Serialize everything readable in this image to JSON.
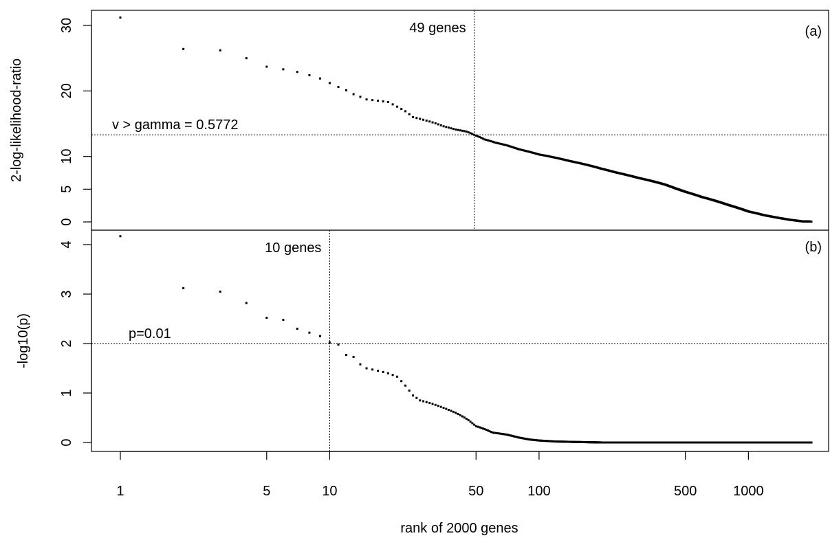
{
  "chart_data": [
    {
      "panel_label": "(a)",
      "type": "scatter",
      "ylabel": "2-log-likelihood-ratio",
      "x_scale": "log",
      "xlim": [
        1,
        2000
      ],
      "ylim": [
        0,
        31
      ],
      "y_ticks": [
        0,
        5,
        10,
        20,
        30
      ],
      "threshold_y": 13.3,
      "threshold_label": "v > gamma = 0.5772",
      "cutoff_x": 49,
      "cutoff_label": "49 genes",
      "points": [
        [
          1,
          31.2
        ],
        [
          2,
          26.4
        ],
        [
          3,
          26.2
        ],
        [
          4,
          25.0
        ],
        [
          5,
          23.7
        ],
        [
          6,
          23.3
        ],
        [
          7,
          22.9
        ],
        [
          8,
          22.4
        ],
        [
          9,
          21.9
        ],
        [
          10,
          21.2
        ],
        [
          11,
          20.6
        ],
        [
          12,
          20.1
        ],
        [
          13,
          19.5
        ],
        [
          15,
          18.7
        ],
        [
          17,
          18.5
        ],
        [
          19,
          18.3
        ],
        [
          21,
          17.6
        ],
        [
          23,
          16.9
        ],
        [
          25,
          16.0
        ],
        [
          28,
          15.6
        ],
        [
          31,
          15.2
        ],
        [
          35,
          14.6
        ],
        [
          40,
          14.1
        ],
        [
          45,
          13.8
        ],
        [
          49,
          13.3
        ],
        [
          55,
          12.6
        ],
        [
          62,
          12.1
        ],
        [
          70,
          11.7
        ],
        [
          80,
          11.1
        ],
        [
          90,
          10.7
        ],
        [
          100,
          10.3
        ],
        [
          120,
          9.8
        ],
        [
          140,
          9.3
        ],
        [
          160,
          8.9
        ],
        [
          180,
          8.5
        ],
        [
          200,
          8.1
        ],
        [
          230,
          7.6
        ],
        [
          260,
          7.2
        ],
        [
          300,
          6.7
        ],
        [
          350,
          6.2
        ],
        [
          400,
          5.7
        ],
        [
          450,
          5.1
        ],
        [
          500,
          4.6
        ],
        [
          600,
          3.8
        ],
        [
          700,
          3.2
        ],
        [
          800,
          2.6
        ],
        [
          900,
          2.1
        ],
        [
          1000,
          1.6
        ],
        [
          1200,
          1.0
        ],
        [
          1400,
          0.6
        ],
        [
          1600,
          0.3
        ],
        [
          1800,
          0.1
        ],
        [
          2000,
          0.05
        ]
      ]
    },
    {
      "panel_label": "(b)",
      "type": "scatter",
      "ylabel": "-log10(p)",
      "xlabel": "rank of  2000  genes",
      "x_scale": "log",
      "xlim": [
        1,
        2000
      ],
      "ylim": [
        0,
        4.2
      ],
      "x_ticks": [
        1,
        5,
        10,
        50,
        100,
        500,
        1000
      ],
      "y_ticks": [
        0,
        1,
        2,
        3,
        4
      ],
      "threshold_y": 2,
      "threshold_label": "p=0.01",
      "cutoff_x": 10,
      "cutoff_label": "10 genes",
      "points": [
        [
          1,
          4.17
        ],
        [
          2,
          3.12
        ],
        [
          3,
          3.05
        ],
        [
          4,
          2.82
        ],
        [
          5,
          2.52
        ],
        [
          6,
          2.48
        ],
        [
          7,
          2.3
        ],
        [
          8,
          2.22
        ],
        [
          9,
          2.15
        ],
        [
          10,
          2.02
        ],
        [
          11,
          1.98
        ],
        [
          12,
          1.77
        ],
        [
          13,
          1.73
        ],
        [
          14,
          1.58
        ],
        [
          15,
          1.5
        ],
        [
          17,
          1.45
        ],
        [
          19,
          1.4
        ],
        [
          21,
          1.33
        ],
        [
          23,
          1.15
        ],
        [
          25,
          0.95
        ],
        [
          27,
          0.85
        ],
        [
          30,
          0.8
        ],
        [
          35,
          0.7
        ],
        [
          40,
          0.6
        ],
        [
          45,
          0.48
        ],
        [
          50,
          0.33
        ],
        [
          55,
          0.27
        ],
        [
          60,
          0.2
        ],
        [
          70,
          0.16
        ],
        [
          80,
          0.1
        ],
        [
          90,
          0.06
        ],
        [
          100,
          0.04
        ],
        [
          120,
          0.02
        ],
        [
          150,
          0.01
        ],
        [
          200,
          0.0
        ],
        [
          300,
          0.0
        ],
        [
          500,
          0.0
        ],
        [
          700,
          0.0
        ],
        [
          1000,
          0.0
        ],
        [
          1500,
          0.0
        ],
        [
          2000,
          0.0
        ]
      ]
    }
  ]
}
